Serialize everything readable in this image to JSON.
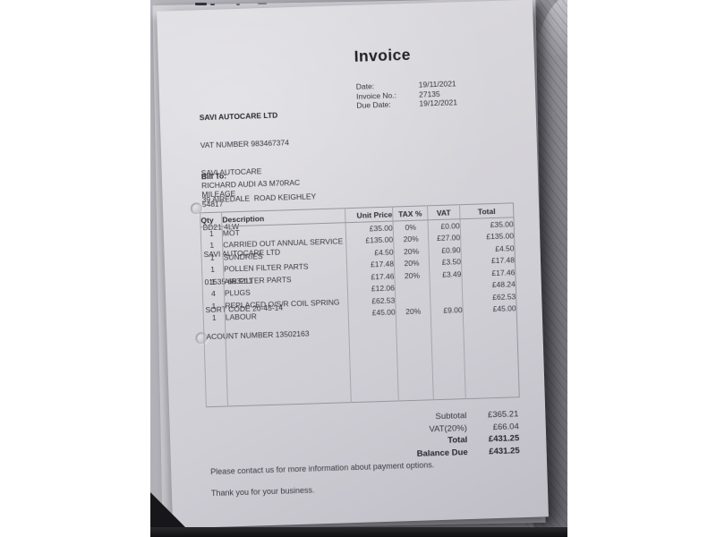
{
  "colors": {
    "paper": "#d6d5da",
    "text": "#35353d",
    "table_border": "#a7a6ae",
    "desk_black": "#141416",
    "background_sheet_gray": "#7d7c82",
    "page_background": "#ffffff"
  },
  "invoice": {
    "title": "Invoice",
    "meta": {
      "date_label": "Date:",
      "date_value": "19/11/2021",
      "invoice_no_label": "Invoice No.:",
      "invoice_no_value": "27135",
      "due_date_label": "Due Date:",
      "due_date_value": "19/12/2021"
    },
    "company": {
      "name": "SAVI AUTOCARE LTD",
      "lines": [
        "VAT NUMBER 983467374",
        "SAVI AUTOCARE",
        "39 AIREDALE  ROAD KEIGHLEY",
        "BD21 4LW",
        "SAVI AUTOCARE LTD",
        "01535 663211",
        "SORT CODE 20-45-14",
        "ACOUNT NUMBER 13502163"
      ]
    },
    "bill_to": {
      "label": "Bill To:",
      "lines": [
        "RICHARD AUDI A3 M70RAC",
        "MILEAGE",
        "54817"
      ]
    },
    "table": {
      "headers": [
        "Qty",
        "Description",
        "Unit Price",
        "TAX %",
        "VAT",
        "Total"
      ],
      "rows": [
        {
          "qty": "1",
          "description": "MOT",
          "unit_price": "£35.00",
          "tax": "0%",
          "vat": "£0.00",
          "total": "£35.00"
        },
        {
          "qty": "1",
          "description": "CARRIED OUT ANNUAL SERVICE",
          "unit_price": "£135.00",
          "tax": "20%",
          "vat": "£27.00",
          "total": "£135.00"
        },
        {
          "qty": "1",
          "description": "SUNDRIES",
          "unit_price": "£4.50",
          "tax": "20%",
          "vat": "£0.90",
          "total": "£4.50"
        },
        {
          "qty": "1",
          "description": "POLLEN FILTER PARTS",
          "unit_price": "£17.48",
          "tax": "20%",
          "vat": "£3.50",
          "total": "£17.48"
        },
        {
          "qty": "1",
          "description": "AIR FILTER PARTS",
          "unit_price": "£17.46",
          "tax": "20%",
          "vat": "£3.49",
          "total": "£17.46"
        },
        {
          "qty": "4",
          "description": "PLUGS",
          "unit_price": "£12.06",
          "tax": "",
          "vat": "",
          "total": "£48.24"
        },
        {
          "qty": "1",
          "description": "REPLACED O/S/R COIL SPRING",
          "unit_price": "£62.53",
          "tax": "",
          "vat": "",
          "total": "£62.53"
        },
        {
          "qty": "1",
          "description": "LABOUR",
          "unit_price": "£45.00",
          "tax": "20%",
          "vat": "£9.00",
          "total": "£45.00"
        }
      ]
    },
    "totals": [
      {
        "label": "Subtotal",
        "value": "£365.21"
      },
      {
        "label": "VAT(20%)",
        "value": "£66.04"
      },
      {
        "label": "Total",
        "value": "£431.25"
      },
      {
        "label": "Balance Due",
        "value": "£431.25"
      }
    ],
    "footer": {
      "line1": "Please contact us for more information about payment options.",
      "line2": "Thank you for your business."
    }
  }
}
